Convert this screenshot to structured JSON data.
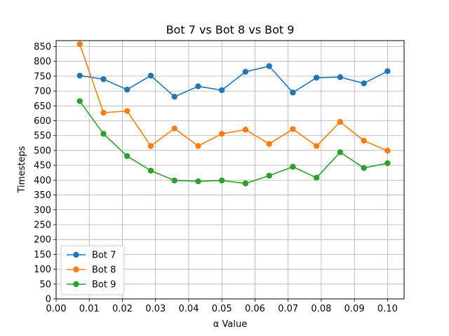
{
  "chart_data": {
    "type": "line",
    "title": "Bot 7 vs Bot 8 vs Bot 9",
    "xlabel": "α Value",
    "ylabel": "Timesteps",
    "xlim": [
      0.0,
      0.105
    ],
    "ylim": [
      0,
      870
    ],
    "xticks": [
      "0.00",
      "0.01",
      "0.02",
      "0.03",
      "0.04",
      "0.05",
      "0.06",
      "0.07",
      "0.08",
      "0.09",
      "0.10"
    ],
    "yticks": [
      "0",
      "50",
      "100",
      "150",
      "200",
      "250",
      "300",
      "350",
      "400",
      "450",
      "500",
      "550",
      "600",
      "650",
      "700",
      "750",
      "800",
      "850"
    ],
    "grid": true,
    "legend_position": "lower-left",
    "x": [
      0.00714,
      0.01429,
      0.02143,
      0.02857,
      0.03571,
      0.04286,
      0.05,
      0.05714,
      0.06429,
      0.07143,
      0.07857,
      0.08571,
      0.09286,
      0.1
    ],
    "series": [
      {
        "name": "Bot 7",
        "color": "#1f77b4",
        "values": [
          752,
          740,
          705,
          752,
          681,
          716,
          703,
          765,
          784,
          695,
          745,
          747,
          726,
          767
        ]
      },
      {
        "name": "Bot 8",
        "color": "#ff7f0e",
        "values": [
          858,
          627,
          633,
          515,
          574,
          515,
          556,
          570,
          522,
          572,
          515,
          596,
          533,
          499
        ]
      },
      {
        "name": "Bot 9",
        "color": "#2ca02c",
        "values": [
          666,
          556,
          481,
          432,
          399,
          396,
          399,
          389,
          415,
          445,
          408,
          494,
          441,
          457
        ]
      }
    ]
  }
}
